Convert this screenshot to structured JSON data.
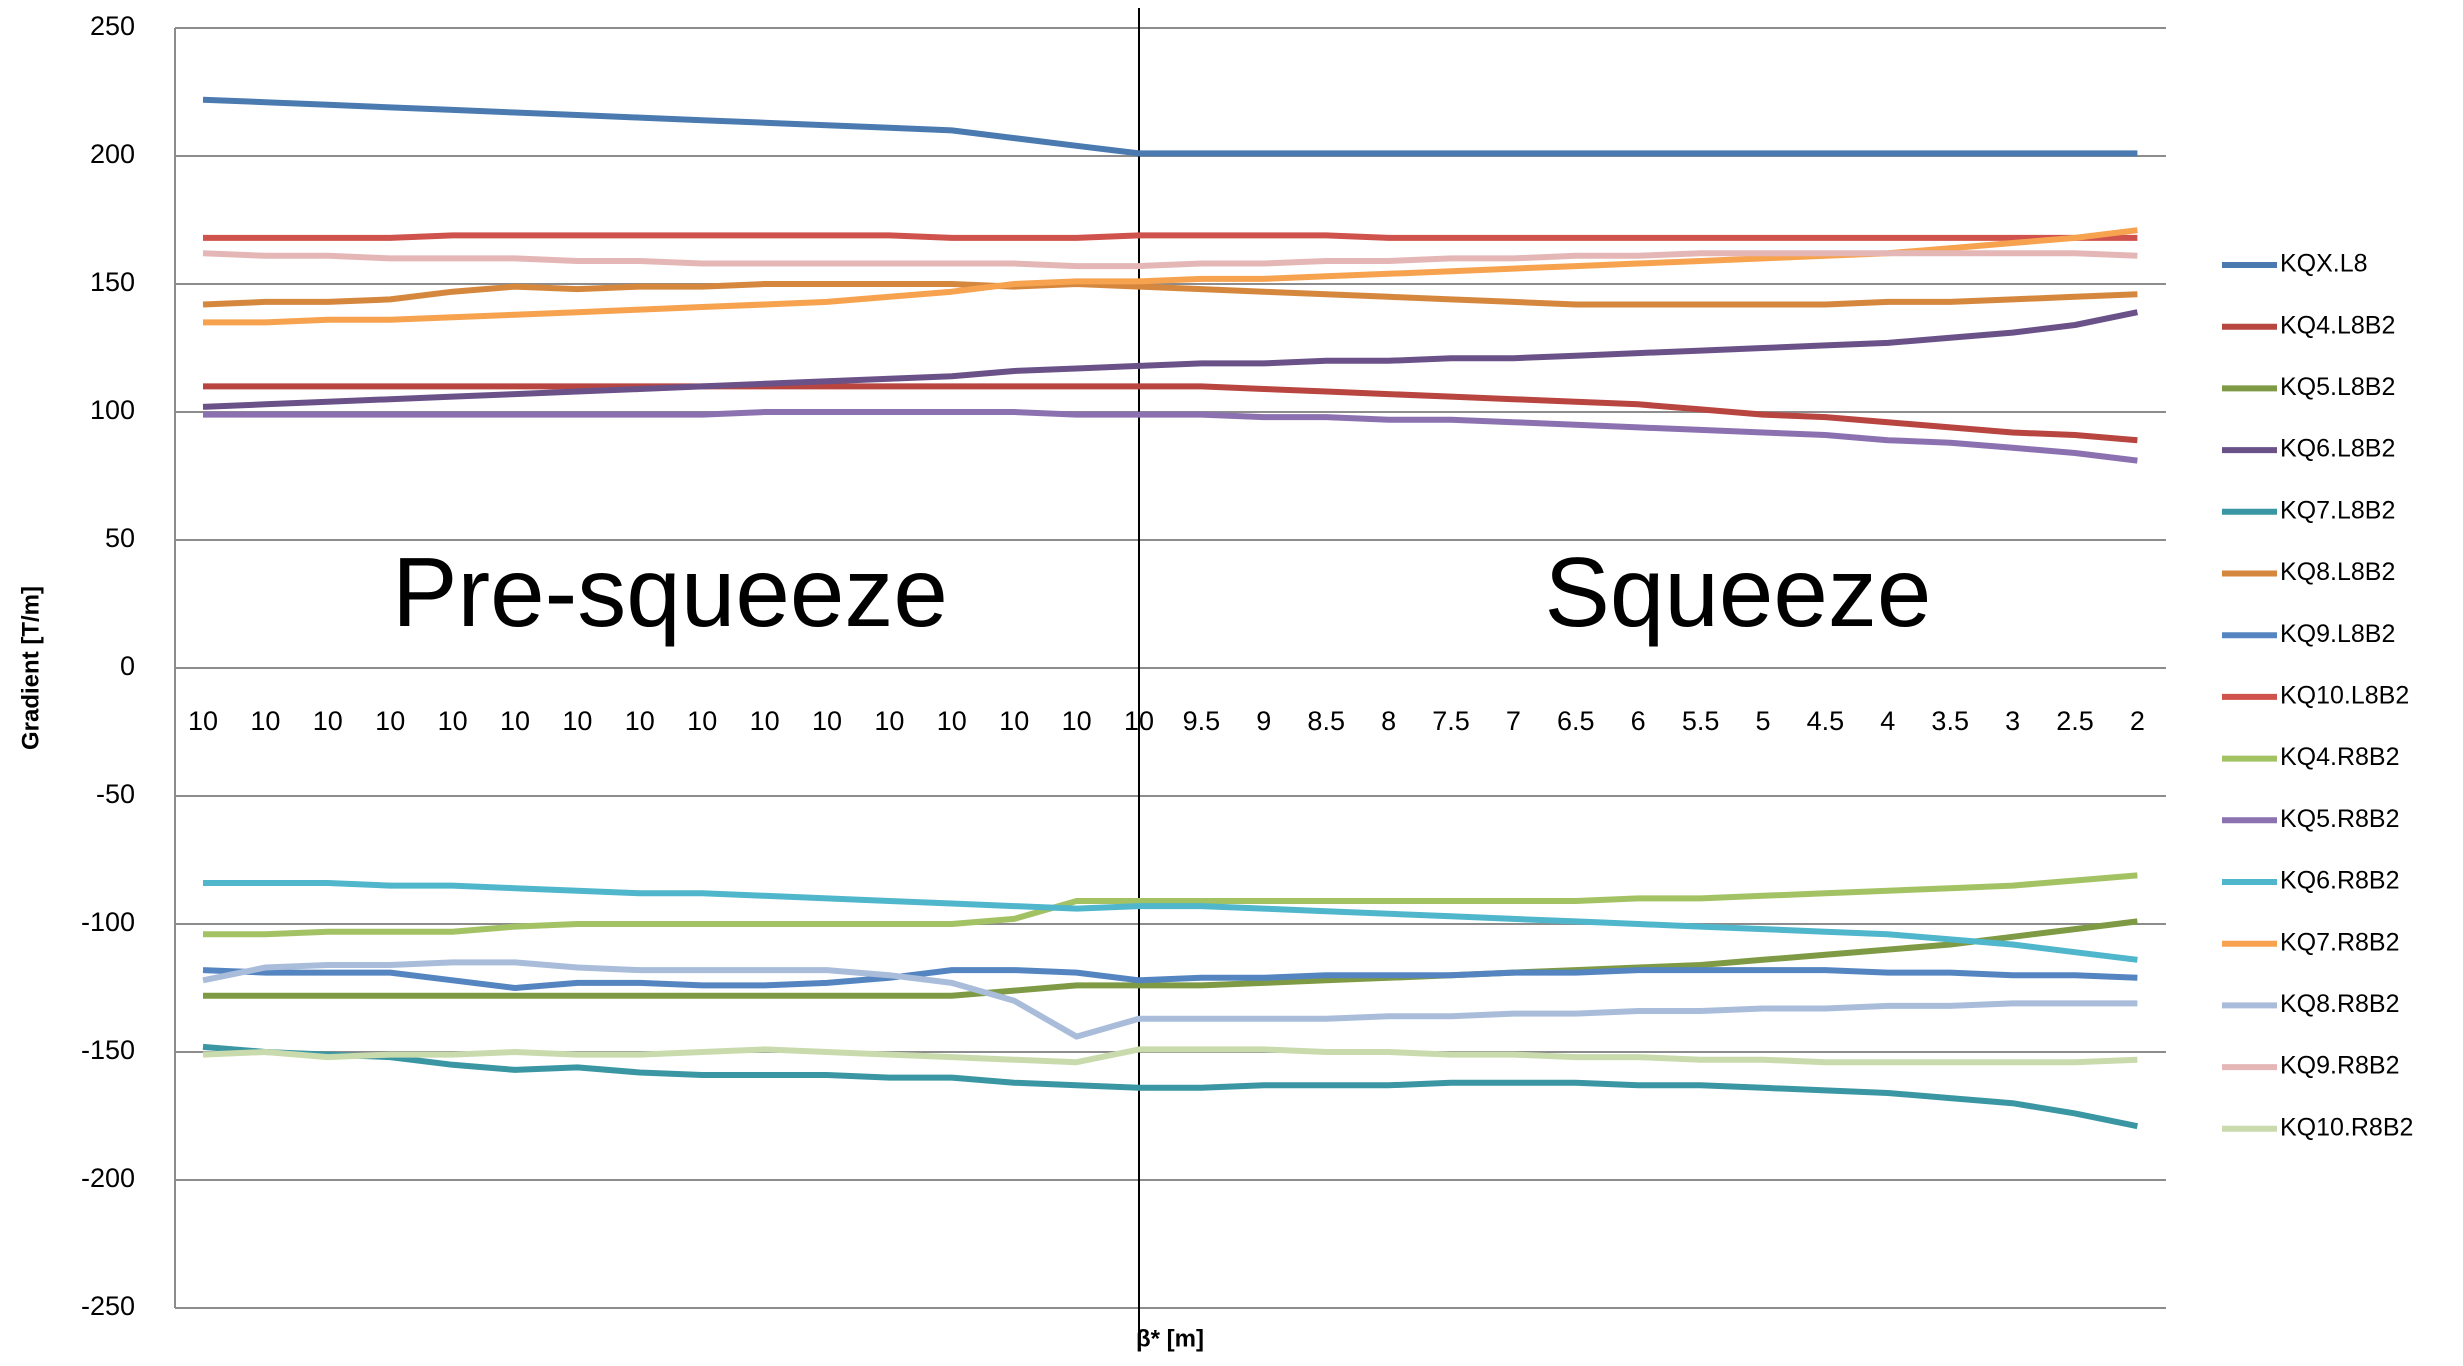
{
  "chart_data": {
    "type": "line",
    "xlabel": "β* [m]",
    "ylabel": "Gradient [T/m]",
    "annotations": [
      "Pre-squeeze",
      "Squeeze"
    ],
    "categories": [
      "10",
      "10",
      "10",
      "10",
      "10",
      "10",
      "10",
      "10",
      "10",
      "10",
      "10",
      "10",
      "10",
      "10",
      "10",
      "10",
      "9.5",
      "9",
      "8.5",
      "8",
      "7.5",
      "7",
      "6.5",
      "6",
      "5.5",
      "5",
      "4.5",
      "4",
      "3.5",
      "3",
      "2.5",
      "2"
    ],
    "ylim": [
      -250,
      250
    ],
    "yticks": [
      -250,
      -200,
      -150,
      -100,
      -50,
      0,
      50,
      100,
      150,
      200,
      250
    ],
    "grid": true,
    "legend": "right",
    "series": [
      {
        "name": "KQX.L8",
        "color": "#4a7ab0",
        "values": [
          222,
          221,
          220,
          219,
          218,
          217,
          216,
          215,
          214,
          213,
          212,
          211,
          210,
          207,
          204,
          201,
          201,
          201,
          201,
          201,
          201,
          201,
          201,
          201,
          201,
          201,
          201,
          201,
          201,
          201,
          201,
          201
        ]
      },
      {
        "name": "KQ4.L8B2",
        "color": "#b8453f",
        "values": [
          110,
          110,
          110,
          110,
          110,
          110,
          110,
          110,
          110,
          110,
          110,
          110,
          110,
          110,
          110,
          110,
          110,
          109,
          108,
          107,
          106,
          105,
          104,
          103,
          101,
          99,
          98,
          96,
          94,
          92,
          91,
          89
        ]
      },
      {
        "name": "KQ5.L8B2",
        "color": "#7f9a44",
        "values": [
          -128,
          -128,
          -128,
          -128,
          -128,
          -128,
          -128,
          -128,
          -128,
          -128,
          -128,
          -128,
          -128,
          -126,
          -124,
          -124,
          -124,
          -123,
          -122,
          -121,
          -120,
          -119,
          -118,
          -117,
          -116,
          -114,
          -112,
          -110,
          -108,
          -105,
          -102,
          -99
        ]
      },
      {
        "name": "KQ6.L8B2",
        "color": "#6a5289",
        "values": [
          102,
          103,
          104,
          105,
          106,
          107,
          108,
          109,
          110,
          111,
          112,
          113,
          114,
          116,
          117,
          118,
          119,
          119,
          120,
          120,
          121,
          121,
          122,
          123,
          124,
          125,
          126,
          127,
          129,
          131,
          134,
          139
        ]
      },
      {
        "name": "KQ7.L8B2",
        "color": "#3a96a2",
        "values": [
          -148,
          -150,
          -151,
          -152,
          -155,
          -157,
          -156,
          -158,
          -159,
          -159,
          -159,
          -160,
          -160,
          -162,
          -163,
          -164,
          -164,
          -163,
          -163,
          -163,
          -162,
          -162,
          -162,
          -163,
          -163,
          -164,
          -165,
          -166,
          -168,
          -170,
          -174,
          -179
        ]
      },
      {
        "name": "KQ8.L8B2",
        "color": "#d5873e",
        "values": [
          142,
          143,
          143,
          144,
          147,
          149,
          148,
          149,
          149,
          150,
          150,
          150,
          150,
          149,
          150,
          149,
          148,
          147,
          146,
          145,
          144,
          143,
          142,
          142,
          142,
          142,
          142,
          143,
          143,
          144,
          145,
          146
        ]
      },
      {
        "name": "KQ9.L8B2",
        "color": "#5585c0",
        "values": [
          -118,
          -119,
          -119,
          -119,
          -122,
          -125,
          -123,
          -123,
          -124,
          -124,
          -123,
          -121,
          -118,
          -118,
          -119,
          -122,
          -121,
          -121,
          -120,
          -120,
          -120,
          -119,
          -119,
          -118,
          -118,
          -118,
          -118,
          -119,
          -119,
          -120,
          -120,
          -121
        ]
      },
      {
        "name": "KQ10.L8B2",
        "color": "#d0524c",
        "values": [
          168,
          168,
          168,
          168,
          169,
          169,
          169,
          169,
          169,
          169,
          169,
          169,
          168,
          168,
          168,
          169,
          169,
          169,
          169,
          168,
          168,
          168,
          168,
          168,
          168,
          168,
          168,
          168,
          168,
          168,
          168,
          168
        ]
      },
      {
        "name": "KQ4.R8B2",
        "color": "#a3c264",
        "values": [
          -104,
          -104,
          -103,
          -103,
          -103,
          -101,
          -100,
          -100,
          -100,
          -100,
          -100,
          -100,
          -100,
          -98,
          -91,
          -91,
          -91,
          -91,
          -91,
          -91,
          -91,
          -91,
          -91,
          -90,
          -90,
          -89,
          -88,
          -87,
          -86,
          -85,
          -83,
          -81
        ]
      },
      {
        "name": "KQ5.R8B2",
        "color": "#8c71b0",
        "values": [
          99,
          99,
          99,
          99,
          99,
          99,
          99,
          99,
          99,
          100,
          100,
          100,
          100,
          100,
          99,
          99,
          99,
          98,
          98,
          97,
          97,
          96,
          95,
          94,
          93,
          92,
          91,
          89,
          88,
          86,
          84,
          81
        ]
      },
      {
        "name": "KQ6.R8B2",
        "color": "#4fb6cc",
        "values": [
          -84,
          -84,
          -84,
          -85,
          -85,
          -86,
          -87,
          -88,
          -88,
          -89,
          -90,
          -91,
          -92,
          -93,
          -94,
          -93,
          -93,
          -94,
          -95,
          -96,
          -97,
          -98,
          -99,
          -100,
          -101,
          -102,
          -103,
          -104,
          -106,
          -108,
          -111,
          -114
        ]
      },
      {
        "name": "KQ7.R8B2",
        "color": "#f6a24f",
        "values": [
          135,
          135,
          136,
          136,
          137,
          138,
          139,
          140,
          141,
          142,
          143,
          145,
          147,
          150,
          151,
          151,
          152,
          152,
          153,
          154,
          155,
          156,
          157,
          158,
          159,
          160,
          161,
          162,
          164,
          166,
          168,
          171
        ]
      },
      {
        "name": "KQ8.R8B2",
        "color": "#a9bddb",
        "values": [
          -122,
          -117,
          -116,
          -116,
          -115,
          -115,
          -117,
          -118,
          -118,
          -118,
          -118,
          -120,
          -123,
          -130,
          -144,
          -137,
          -137,
          -137,
          -137,
          -136,
          -136,
          -135,
          -135,
          -134,
          -134,
          -133,
          -133,
          -132,
          -132,
          -131,
          -131,
          -131
        ]
      },
      {
        "name": "KQ9.R8B2",
        "color": "#e4b7b6",
        "values": [
          162,
          161,
          161,
          160,
          160,
          160,
          159,
          159,
          158,
          158,
          158,
          158,
          158,
          158,
          157,
          157,
          158,
          158,
          159,
          159,
          160,
          160,
          161,
          161,
          162,
          162,
          162,
          162,
          162,
          162,
          162,
          161
        ]
      },
      {
        "name": "KQ10.R8B2",
        "color": "#c9dbad",
        "values": [
          -151,
          -150,
          -152,
          -151,
          -151,
          -150,
          -151,
          -151,
          -150,
          -149,
          -150,
          -151,
          -152,
          -153,
          -154,
          -149,
          -149,
          -149,
          -150,
          -150,
          -151,
          -151,
          -152,
          -152,
          -153,
          -153,
          -154,
          -154,
          -154,
          -154,
          -154,
          -153
        ]
      }
    ]
  }
}
